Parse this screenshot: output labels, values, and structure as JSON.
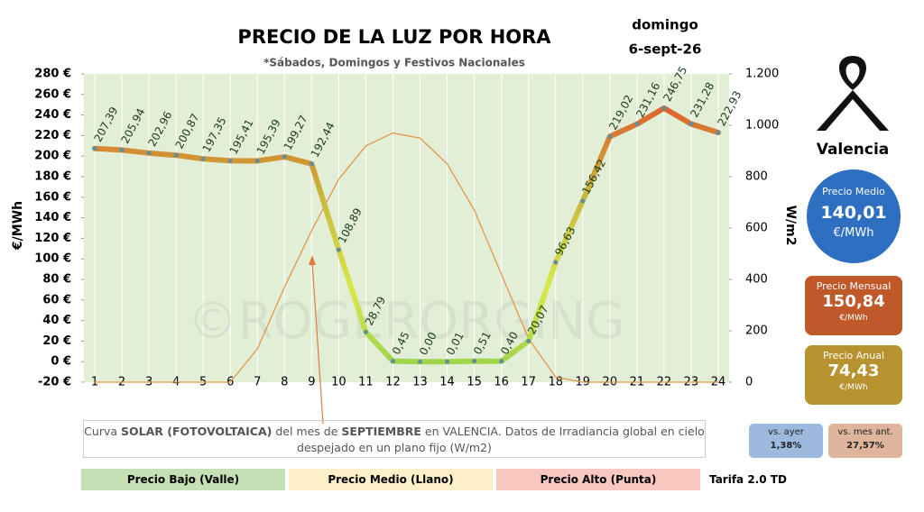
{
  "chart_data": {
    "type": "line",
    "title": "PRECIO DE LA LUZ POR HORA",
    "subtitle": "*Sábados, Domingos y Festivos Nacionales",
    "day": "domingo",
    "date": "6-sept-26",
    "y_label": "€/MWh",
    "y2_label": "W/m2",
    "watermark": "©ROGERORGING",
    "categories": [
      "1",
      "2",
      "3",
      "4",
      "5",
      "6",
      "7",
      "8",
      "9",
      "10",
      "11",
      "12",
      "13",
      "14",
      "15",
      "16",
      "17",
      "18",
      "19",
      "20",
      "21",
      "22",
      "23",
      "24"
    ],
    "series": [
      {
        "name": "Precio",
        "color_gradient": [
          "#93cf4a",
          "#d8e84a",
          "#c8b43a",
          "#e0602c"
        ],
        "point_color": "#5f8ea0",
        "values": [
          207.39,
          205.94,
          202.96,
          200.87,
          197.35,
          195.41,
          195.39,
          199.27,
          192.44,
          108.89,
          28.79,
          0.45,
          0.0,
          0.01,
          0.51,
          0.4,
          20.07,
          96.63,
          156.42,
          219.02,
          231.16,
          246.75,
          231.28,
          222.93
        ],
        "value_labels": [
          "207,39",
          "205,94",
          "202,96",
          "200,87",
          "197,35",
          "195,41",
          "195,39",
          "199,27",
          "192,44",
          "108,89",
          "28,79",
          "0,45",
          "0,00",
          "0,01",
          "0,51",
          "0,40",
          "20,07",
          "96,63",
          "156,42",
          "219,02",
          "231,16",
          "246,75",
          "231,28",
          "222,93"
        ]
      },
      {
        "name": "Solar",
        "axis": "y2",
        "color": "#e3964c",
        "values": [
          0,
          0,
          0,
          0,
          0,
          0,
          130,
          370,
          590,
          790,
          920,
          970,
          950,
          850,
          670,
          420,
          170,
          20,
          0,
          0,
          0,
          0,
          0,
          0
        ]
      }
    ],
    "ylim": [
      -20,
      280
    ],
    "yticks": [
      {
        "value": -20,
        "label": "-20 €"
      },
      {
        "value": 0,
        "label": "0 €"
      },
      {
        "value": 20,
        "label": "20 €"
      },
      {
        "value": 40,
        "label": "40 €"
      },
      {
        "value": 60,
        "label": "60 €"
      },
      {
        "value": 80,
        "label": "80 €"
      },
      {
        "value": 100,
        "label": "100 €"
      },
      {
        "value": 120,
        "label": "120 €"
      },
      {
        "value": 140,
        "label": "140 €"
      },
      {
        "value": 160,
        "label": "160 €"
      },
      {
        "value": 180,
        "label": "180 €"
      },
      {
        "value": 200,
        "label": "200 €"
      },
      {
        "value": 220,
        "label": "220 €"
      },
      {
        "value": 240,
        "label": "240 €"
      },
      {
        "value": 260,
        "label": "260 €"
      },
      {
        "value": 280,
        "label": "280 €"
      }
    ],
    "y2lim": [
      0,
      1200
    ],
    "y2ticks": [
      0,
      200,
      400,
      600,
      800,
      {
        "value": 1000,
        "label": "1.000"
      },
      {
        "value": 1200,
        "label": "1.200"
      }
    ],
    "grid": true,
    "plot_background": "#e2efd6"
  },
  "side": {
    "city": "Valencia",
    "medio": {
      "label": "Precio Medio",
      "value": "140,01",
      "unit": "€/MWh"
    },
    "mensual": {
      "label": "Precio Mensual",
      "value": "150,84",
      "unit": "€/MWh"
    },
    "anual": {
      "label": "Precio Anual",
      "value": "74,43",
      "unit": "€/MWh"
    },
    "ayer": {
      "label": "vs. ayer",
      "value": "1,38%"
    },
    "mes": {
      "label": "vs. mes ant.",
      "value": "27,57%"
    }
  },
  "note": [
    "Curva ",
    "SOLAR (FOTOVOLTAICA)",
    " del mes de ",
    "SEPTIEMBRE",
    " en VALENCIA. Datos de Irradiancia global en cielo despejado en un plano fijo (W/m2)"
  ],
  "legend": [
    "Precio Bajo (Valle)",
    "Precio Medio (Llano)",
    "Precio Alto (Punta)"
  ],
  "tarifa": "Tarifa 2.0 TD"
}
